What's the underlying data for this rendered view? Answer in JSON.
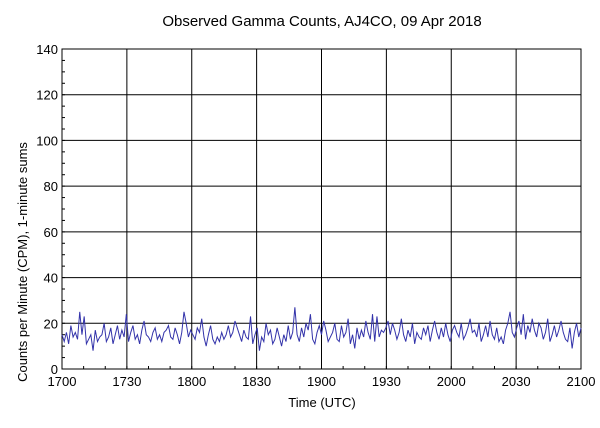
{
  "chart_data": {
    "type": "line",
    "title": "Observed Gamma Counts, AJ4CO, 09 Apr 2018",
    "xlabel": "Time (UTC)",
    "ylabel": "Counts per Minute (CPM), 1-minute sums",
    "xlim_minutes": [
      0,
      240
    ],
    "ylim": [
      0,
      140
    ],
    "x_tick_labels": [
      "1700",
      "1730",
      "1800",
      "1830",
      "1900",
      "1930",
      "2000",
      "2030",
      "2100"
    ],
    "y_tick_labels": [
      "0",
      "20",
      "40",
      "60",
      "80",
      "100",
      "120",
      "140"
    ],
    "grid": true,
    "line_color": "#3333aa",
    "series": [
      {
        "values": [
          15,
          12,
          16,
          11,
          19,
          14,
          16,
          13,
          25,
          15,
          23,
          11,
          13,
          15,
          8,
          17,
          12,
          14,
          15,
          20,
          12,
          14,
          18,
          11,
          15,
          19,
          13,
          17,
          14,
          24,
          12,
          16,
          19,
          13,
          15,
          11,
          17,
          21,
          15,
          14,
          12,
          16,
          18,
          13,
          15,
          12,
          16,
          17,
          19,
          14,
          13,
          18,
          15,
          11,
          16,
          25,
          20,
          14,
          17,
          15,
          13,
          18,
          16,
          22,
          14,
          10,
          15,
          19,
          13,
          11,
          14,
          12,
          16,
          13,
          15,
          19,
          14,
          16,
          21,
          18,
          15,
          12,
          17,
          14,
          13,
          23,
          11,
          15,
          18,
          8,
          14,
          12,
          20,
          15,
          17,
          11,
          13,
          18,
          14,
          10,
          15,
          12,
          19,
          13,
          16,
          27,
          15,
          12,
          18,
          14,
          20,
          17,
          24,
          13,
          11,
          16,
          19,
          15,
          21,
          17,
          12,
          14,
          16,
          20,
          13,
          12,
          19,
          14,
          16,
          22,
          11,
          15,
          9,
          18,
          13,
          17,
          14,
          21,
          16,
          13,
          24,
          12,
          23,
          14,
          17,
          16,
          18,
          21,
          15,
          20,
          17,
          13,
          16,
          22,
          15,
          12,
          17,
          14,
          20,
          11,
          16,
          14,
          13,
          18,
          15,
          19,
          12,
          17,
          21,
          16,
          13,
          18,
          14,
          20,
          15,
          12,
          17,
          19,
          16,
          14,
          20,
          13,
          15,
          18,
          22,
          16,
          17,
          14,
          20,
          12,
          15,
          19,
          14,
          21,
          15,
          13,
          18,
          12,
          14,
          11,
          17,
          20,
          25,
          16,
          14,
          18,
          21,
          15,
          24,
          13,
          19,
          16,
          22,
          17,
          14,
          20,
          18,
          13,
          16,
          22,
          12,
          15,
          19,
          14,
          17,
          21,
          16,
          13,
          12,
          18,
          9,
          16,
          20,
          14,
          18
        ]
      }
    ]
  }
}
